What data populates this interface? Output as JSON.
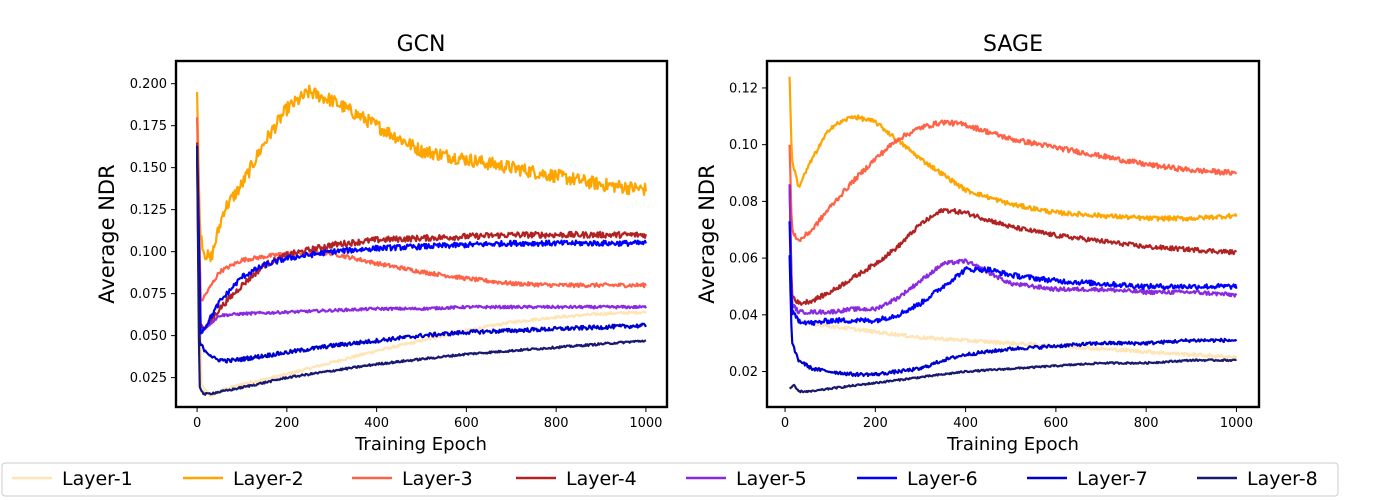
{
  "chart_data": [
    {
      "type": "line",
      "title": "GCN",
      "xlabel": "Training Epoch",
      "ylabel": "Average NDR",
      "xlim": [
        -47,
        1047
      ],
      "ylim": [
        0.0075,
        0.2135
      ],
      "xticks": [
        0,
        200,
        400,
        600,
        800,
        1000
      ],
      "xtick_labels": [
        "0",
        "200",
        "400",
        "600",
        "800",
        "1000"
      ],
      "yticks": [
        0.025,
        0.05,
        0.075,
        0.1,
        0.125,
        0.15,
        0.175,
        0.2
      ],
      "ytick_labels": [
        "0.025",
        "0.050",
        "0.075",
        "0.100",
        "0.125",
        "0.150",
        "0.175",
        "0.200"
      ],
      "series": [
        {
          "name": "Layer-1",
          "x": [
            0,
            10,
            30,
            60,
            100,
            150,
            200,
            300,
            400,
            500,
            600,
            700,
            800,
            900,
            1000
          ],
          "values": [
            0.16,
            0.02,
            0.014,
            0.018,
            0.021,
            0.024,
            0.027,
            0.034,
            0.041,
            0.047,
            0.053,
            0.058,
            0.061,
            0.063,
            0.064
          ],
          "noise": 0.0008
        },
        {
          "name": "Layer-2",
          "x": [
            0,
            6,
            15,
            30,
            45,
            60,
            100,
            150,
            200,
            250,
            300,
            400,
            500,
            600,
            700,
            800,
            900,
            1000
          ],
          "values": [
            0.195,
            0.115,
            0.1,
            0.095,
            0.11,
            0.125,
            0.14,
            0.165,
            0.185,
            0.195,
            0.19,
            0.175,
            0.16,
            0.155,
            0.15,
            0.145,
            0.14,
            0.137
          ],
          "noise": 0.004
        },
        {
          "name": "Layer-3",
          "x": [
            0,
            8,
            20,
            50,
            100,
            200,
            300,
            400,
            500,
            600,
            700,
            800,
            900,
            1000
          ],
          "values": [
            0.18,
            0.07,
            0.075,
            0.088,
            0.095,
            0.099,
            0.099,
            0.093,
            0.088,
            0.084,
            0.081,
            0.08,
            0.08,
            0.08
          ],
          "noise": 0.0012
        },
        {
          "name": "Layer-4",
          "x": [
            0,
            8,
            20,
            50,
            100,
            150,
            200,
            300,
            400,
            500,
            600,
            700,
            800,
            900,
            1000
          ],
          "values": [
            0.165,
            0.056,
            0.055,
            0.066,
            0.08,
            0.092,
            0.098,
            0.104,
            0.107,
            0.108,
            0.109,
            0.11,
            0.11,
            0.11,
            0.11
          ],
          "noise": 0.0018
        },
        {
          "name": "Layer-5",
          "x": [
            0,
            8,
            20,
            50,
            100,
            200,
            300,
            400,
            500,
            600,
            700,
            800,
            900,
            1000
          ],
          "values": [
            0.16,
            0.052,
            0.055,
            0.062,
            0.063,
            0.064,
            0.065,
            0.066,
            0.066,
            0.067,
            0.067,
            0.067,
            0.067,
            0.067
          ],
          "noise": 0.0008
        },
        {
          "name": "Layer-6",
          "x": [
            0,
            8,
            20,
            50,
            100,
            150,
            200,
            300,
            400,
            500,
            600,
            700,
            800,
            900,
            1000
          ],
          "values": [
            0.162,
            0.052,
            0.056,
            0.07,
            0.085,
            0.092,
            0.096,
            0.1,
            0.102,
            0.103,
            0.104,
            0.105,
            0.105,
            0.105,
            0.105
          ],
          "noise": 0.0016
        },
        {
          "name": "Layer-7",
          "x": [
            0,
            5,
            15,
            40,
            70,
            100,
            200,
            300,
            400,
            500,
            600,
            700,
            800,
            900,
            1000
          ],
          "values": [
            0.163,
            0.046,
            0.042,
            0.036,
            0.035,
            0.036,
            0.04,
            0.044,
            0.047,
            0.05,
            0.052,
            0.053,
            0.054,
            0.055,
            0.056
          ],
          "noise": 0.0012
        },
        {
          "name": "Layer-8",
          "x": [
            0,
            5,
            15,
            40,
            80,
            150,
            200,
            300,
            400,
            500,
            600,
            700,
            800,
            900,
            1000
          ],
          "values": [
            0.162,
            0.02,
            0.015,
            0.016,
            0.018,
            0.022,
            0.025,
            0.029,
            0.033,
            0.036,
            0.039,
            0.041,
            0.043,
            0.045,
            0.047
          ],
          "noise": 0.0006
        }
      ]
    },
    {
      "type": "line",
      "title": "SAGE",
      "xlabel": "Training Epoch",
      "ylabel": "Average NDR",
      "xlim": [
        -40,
        1050
      ],
      "ylim": [
        0.0075,
        0.1295
      ],
      "xticks": [
        0,
        200,
        400,
        600,
        800,
        1000
      ],
      "xtick_labels": [
        "0",
        "200",
        "400",
        "600",
        "800",
        "1000"
      ],
      "yticks": [
        0.02,
        0.04,
        0.06,
        0.08,
        0.1,
        0.12
      ],
      "ytick_labels": [
        "0.02",
        "0.04",
        "0.06",
        "0.08",
        "0.10",
        "0.12"
      ],
      "series": [
        {
          "name": "Layer-1",
          "x": [
            10,
            15,
            30,
            60,
            100,
            200,
            300,
            400,
            500,
            600,
            700,
            800,
            900,
            1000
          ],
          "values": [
            0.05,
            0.042,
            0.038,
            0.037,
            0.036,
            0.034,
            0.032,
            0.031,
            0.03,
            0.029,
            0.028,
            0.027,
            0.026,
            0.025
          ],
          "noise": 0.0006
        },
        {
          "name": "Layer-2",
          "x": [
            10,
            15,
            30,
            60,
            100,
            150,
            200,
            300,
            400,
            500,
            600,
            700,
            800,
            900,
            1000
          ],
          "values": [
            0.124,
            0.095,
            0.085,
            0.095,
            0.106,
            0.11,
            0.108,
            0.095,
            0.084,
            0.079,
            0.076,
            0.075,
            0.074,
            0.074,
            0.075
          ],
          "noise": 0.0008
        },
        {
          "name": "Layer-3",
          "x": [
            10,
            15,
            30,
            60,
            100,
            150,
            200,
            250,
            300,
            350,
            400,
            500,
            600,
            700,
            800,
            900,
            1000
          ],
          "values": [
            0.1,
            0.07,
            0.066,
            0.07,
            0.078,
            0.087,
            0.095,
            0.102,
            0.106,
            0.108,
            0.107,
            0.102,
            0.099,
            0.096,
            0.093,
            0.091,
            0.09
          ],
          "noise": 0.0009
        },
        {
          "name": "Layer-4",
          "x": [
            10,
            15,
            30,
            60,
            100,
            150,
            200,
            250,
            300,
            350,
            400,
            500,
            600,
            700,
            800,
            900,
            1000
          ],
          "values": [
            0.086,
            0.047,
            0.044,
            0.045,
            0.048,
            0.053,
            0.058,
            0.064,
            0.072,
            0.077,
            0.076,
            0.071,
            0.068,
            0.066,
            0.064,
            0.063,
            0.062
          ],
          "noise": 0.0008
        },
        {
          "name": "Layer-5",
          "x": [
            10,
            15,
            30,
            60,
            100,
            150,
            200,
            250,
            300,
            350,
            400,
            450,
            500,
            600,
            700,
            800,
            900,
            1000
          ],
          "values": [
            0.086,
            0.044,
            0.041,
            0.041,
            0.041,
            0.042,
            0.042,
            0.046,
            0.052,
            0.058,
            0.059,
            0.055,
            0.051,
            0.049,
            0.049,
            0.048,
            0.048,
            0.047
          ],
          "noise": 0.0007
        },
        {
          "name": "Layer-6",
          "x": [
            10,
            15,
            30,
            60,
            100,
            150,
            200,
            250,
            300,
            350,
            400,
            450,
            500,
            600,
            700,
            800,
            900,
            1000
          ],
          "values": [
            0.073,
            0.041,
            0.038,
            0.037,
            0.038,
            0.038,
            0.038,
            0.04,
            0.044,
            0.05,
            0.056,
            0.056,
            0.054,
            0.052,
            0.051,
            0.05,
            0.05,
            0.05
          ],
          "noise": 0.0009
        },
        {
          "name": "Layer-7",
          "x": [
            10,
            15,
            30,
            60,
            100,
            150,
            200,
            250,
            300,
            350,
            400,
            500,
            600,
            700,
            800,
            900,
            1000
          ],
          "values": [
            0.061,
            0.03,
            0.024,
            0.021,
            0.02,
            0.019,
            0.019,
            0.02,
            0.021,
            0.024,
            0.026,
            0.028,
            0.029,
            0.03,
            0.03,
            0.031,
            0.031
          ],
          "noise": 0.0006
        },
        {
          "name": "Layer-8",
          "x": [
            10,
            20,
            30,
            45,
            60,
            100,
            200,
            300,
            400,
            500,
            600,
            700,
            800,
            900,
            1000
          ],
          "values": [
            0.014,
            0.015,
            0.013,
            0.013,
            0.013,
            0.014,
            0.016,
            0.018,
            0.02,
            0.021,
            0.022,
            0.023,
            0.023,
            0.024,
            0.024
          ],
          "noise": 0.0003
        }
      ]
    }
  ],
  "legend": {
    "placement": "bottom-center",
    "entries": [
      {
        "label": "Layer-1",
        "color": "#FFE4B5"
      },
      {
        "label": "Layer-2",
        "color": "#FFA500"
      },
      {
        "label": "Layer-3",
        "color": "#FF6347"
      },
      {
        "label": "Layer-4",
        "color": "#B22222"
      },
      {
        "label": "Layer-5",
        "color": "#8A2BE2"
      },
      {
        "label": "Layer-6",
        "color": "#0000FF"
      },
      {
        "label": "Layer-7",
        "color": "#0000CD"
      },
      {
        "label": "Layer-8",
        "color": "#191970"
      }
    ]
  }
}
